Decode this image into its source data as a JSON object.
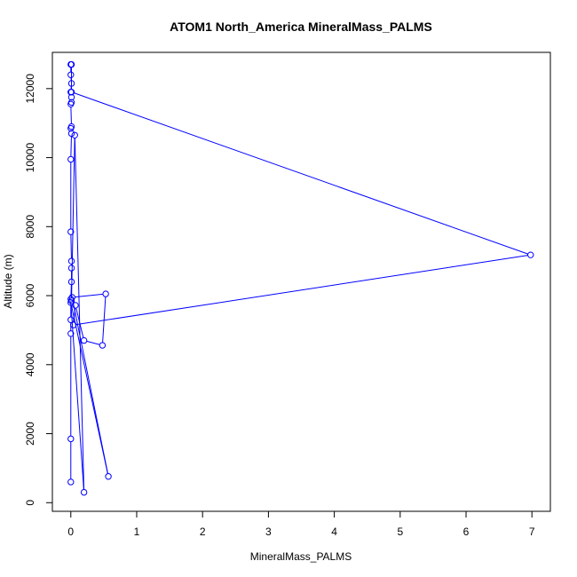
{
  "chart_data": {
    "type": "line",
    "title": "ATOM1 North_America MineralMass_PALMS",
    "xlabel": "MineralMass_PALMS",
    "ylabel": "Altitude (m)",
    "xlim": [
      -0.28,
      7.28
    ],
    "ylim": [
      -250,
      13050
    ],
    "xticks": [
      0,
      1,
      2,
      3,
      4,
      5,
      6,
      7
    ],
    "yticks": [
      0,
      2000,
      4000,
      6000,
      8000,
      10000,
      12000
    ],
    "color": "#0000ff",
    "marker": "open-circle",
    "points": [
      [
        0.0,
        600
      ],
      [
        0.0,
        1850
      ],
      [
        0.0,
        4900
      ],
      [
        0.0,
        5300
      ],
      [
        0.0,
        5900
      ],
      [
        0.01,
        6400
      ],
      [
        0.01,
        6800
      ],
      [
        0.01,
        7000
      ],
      [
        0.0,
        7850
      ],
      [
        0.0,
        9950
      ],
      [
        0.01,
        10700
      ],
      [
        0.0,
        10850
      ],
      [
        0.01,
        10900
      ],
      [
        0.0,
        11550
      ],
      [
        0.01,
        11600
      ],
      [
        0.01,
        11750
      ],
      [
        0.0,
        11900
      ],
      [
        0.01,
        12150
      ],
      [
        0.0,
        12400
      ],
      [
        0.0,
        12700
      ],
      [
        0.01,
        12700
      ],
      [
        0.01,
        11900
      ],
      [
        6.98,
        7180
      ],
      [
        0.04,
        5150
      ],
      [
        0.07,
        5720
      ],
      [
        0.2,
        4700
      ],
      [
        0.48,
        4560
      ],
      [
        0.53,
        6050
      ],
      [
        0.02,
        5950
      ],
      [
        0.57,
        760
      ],
      [
        0.0,
        5800
      ],
      [
        0.2,
        300
      ],
      [
        0.06,
        10650
      ],
      [
        0.01,
        5850
      ]
    ],
    "grid": false,
    "legend": "none"
  }
}
